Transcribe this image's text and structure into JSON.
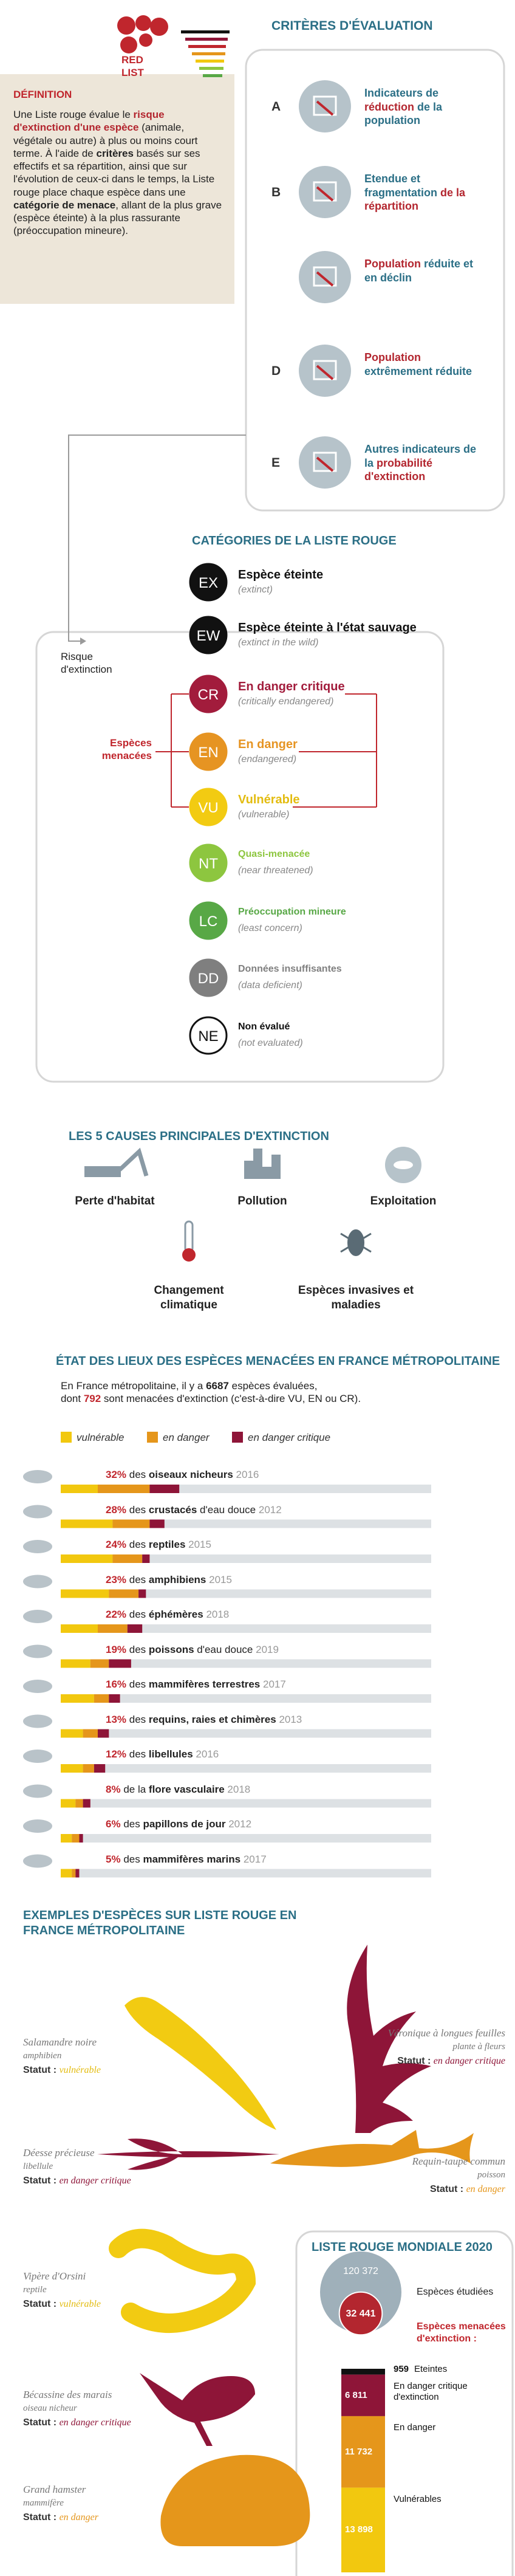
{
  "header": {
    "logo": "RED LIST",
    "criteria_title": "CRITÈRES D'ÉVALUATION"
  },
  "definition": {
    "title": "DÉFINITION",
    "text": [
      {
        "text": "Une Liste rouge évalue le ",
        "color": "#222222",
        "bold": false
      },
      {
        "text": "risque d'extinction d'une espèce",
        "color": "#b3262f",
        "bold": true
      },
      {
        "text": " (animale, végétale ou autre) à plus ou moins court terme. À l'aide de ",
        "color": "#222222",
        "bold": false
      },
      {
        "text": "critères",
        "color": "#222222",
        "bold": true
      },
      {
        "text": " basés sur ses effectifs et sa répartition, ainsi que sur l'évolution de ceux-ci dans le temps, la Liste rouge place chaque espèce dans une ",
        "color": "#222222",
        "bold": false
      },
      {
        "text": "catégorie de menace",
        "color": "#222222",
        "bold": true
      },
      {
        "text": ", allant de la plus grave (espèce éteinte) à la plus rassurante (préoccupation mineure).",
        "color": "#222222",
        "bold": false
      }
    ]
  },
  "criteria": [
    {
      "letter": "A",
      "text": [
        {
          "text": "Indicateurs de ",
          "color": "#2b6f86"
        },
        {
          "text": "réduction",
          "color": "#b3262f"
        },
        {
          "text": " de la population",
          "color": "#2b6f86"
        }
      ]
    },
    {
      "letter": "B",
      "text": [
        {
          "text": "Etendue et fragmentation ",
          "color": "#2b6f86"
        },
        {
          "text": "de la répartition",
          "color": "#b3262f"
        }
      ]
    },
    {
      "text": [
        {
          "text": "Population",
          "color": "#b3262f"
        },
        {
          "text": " réduite et en déclin",
          "color": "#2b6f86"
        }
      ]
    },
    {
      "letter": "D",
      "text": [
        {
          "text": "Population",
          "color": "#b3262f"
        },
        {
          "text": " extrêmement réduite",
          "color": "#2b6f86"
        }
      ]
    },
    {
      "letter": "E",
      "text": [
        {
          "text": "Autres indicateurs de la ",
          "color": "#2b6f86"
        },
        {
          "text": "probabilité d'extinction",
          "color": "#b3262f"
        }
      ]
    }
  ],
  "categories": {
    "title": "CATÉGORIES DE LA LISTE ROUGE",
    "risk_label": "Risque d'extinction",
    "threatened_label": "Espèces menacées",
    "items": [
      {
        "code": "EX",
        "name": "Espèce éteinte",
        "english": "(extinct)",
        "color": "#111111",
        "text_color": "#111111"
      },
      {
        "code": "EW",
        "name": "Espèce éteinte à l'état sauvage",
        "english": "(extinct in the wild)",
        "color": "#111111",
        "text_color": "#111111"
      },
      {
        "code": "CR",
        "name": "En danger critique",
        "english": "(critically endangered)",
        "color": "#a21c3c",
        "text_color": "#a21c3c"
      },
      {
        "code": "EN",
        "name": "En danger",
        "english": "(endangered)",
        "color": "#e69422",
        "text_color": "#e69422"
      },
      {
        "code": "VU",
        "name": "Vulnérable",
        "english": "(vulnerable)",
        "color": "#f2cb12",
        "text_color": "#e3bc10"
      },
      {
        "code": "NT",
        "name": "Quasi-menacée",
        "english": "(near threatened)",
        "color": "#8dc63f",
        "text_color": "#8dc63f"
      },
      {
        "code": "LC",
        "name": "Préoccupation mineure",
        "english": "(least concern)",
        "color": "#58a846",
        "text_color": "#58a846"
      },
      {
        "code": "DD",
        "name": "Données insuffisantes",
        "english": "(data deficient)",
        "color": "#7f7f7f",
        "text_color": "#7f7f7f"
      },
      {
        "code": "NE",
        "name": "Non évalué",
        "english": "(not evaluated)",
        "color": "#ffffff",
        "text_color": "#111111"
      }
    ]
  },
  "causes": {
    "title": "LES 5 CAUSES PRINCIPALES D'EXTINCTION",
    "items": [
      "Perte d'habitat",
      "Pollution",
      "Exploitation",
      "Changement climatique",
      "Espèces invasives et maladies"
    ]
  },
  "chart_data": [
    {
      "type": "bar",
      "orientation": "horizontal",
      "stacked": true,
      "title": "ÉTAT DES LIEUX DES ESPÈCES MENACÉES EN FRANCE MÉTROPOLITAINE",
      "intro": [
        "En France métropolitaine, il y a ",
        "6687",
        " espèces évaluées,",
        "dont ",
        "792",
        " sont menacées d'extinction (c'est-à-dire VU, EN ou CR)."
      ],
      "categories": [
        "oiseaux nicheurs",
        "crustacés",
        "reptiles",
        "amphibiens",
        "éphémères",
        "poissons",
        "mammifères terrestres",
        "requins, raies et chimères",
        "libellules",
        "flore vasculaire",
        "papillons de jour",
        "mammifères marins"
      ],
      "suffixes": [
        null,
        " d'eau douce",
        null,
        null,
        null,
        " d'eau douce",
        null,
        null,
        null,
        null,
        null,
        null
      ],
      "prefixes": [
        "des",
        "des",
        "des",
        "des",
        "des",
        "des",
        "des",
        "des",
        "des",
        "de la",
        "des",
        "des"
      ],
      "years": [
        "2016",
        "2012",
        "2015",
        "2015",
        "2018",
        "2019",
        "2017",
        "2013",
        "2016",
        "2018",
        "2012",
        "2017"
      ],
      "totals": [
        32,
        28,
        24,
        23,
        22,
        19,
        16,
        13,
        12,
        8,
        6,
        5
      ],
      "total_labels": [
        "32%",
        "28%",
        "24%",
        "23%",
        "22%",
        "19%",
        "16%",
        "13%",
        "12%",
        "8%",
        "6%",
        "5%"
      ],
      "xlim": [
        0,
        100
      ],
      "series": [
        {
          "name": "vulnérable",
          "color": "#f2c80f",
          "values": [
            10,
            14,
            14,
            13,
            10,
            8,
            9,
            6,
            6,
            4,
            3,
            3
          ]
        },
        {
          "name": "en danger",
          "color": "#e5961b",
          "values": [
            14,
            10,
            8,
            8,
            8,
            5,
            4,
            4,
            3,
            2,
            2,
            1
          ]
        },
        {
          "name": "en danger critique",
          "color": "#8e1538",
          "values": [
            8,
            4,
            2,
            2,
            4,
            6,
            3,
            3,
            3,
            2,
            1,
            1
          ]
        }
      ]
    },
    {
      "type": "bar",
      "orientation": "vertical",
      "stacked": true,
      "title": "LISTE ROUGE MONDIALE 2020",
      "bubbles": {
        "values": [
          120372,
          32441
        ],
        "value_labels": [
          "120 372",
          "32 441"
        ],
        "labels": [
          "Espèces étudiées",
          "Espèces menacées d'extinction :"
        ],
        "colors": [
          "#9fb0ba",
          "#b3262f"
        ]
      },
      "series": [
        {
          "name": "Eteintes",
          "color": "#111111",
          "values": [
            959
          ],
          "value_labels": [
            "959"
          ]
        },
        {
          "name": "En danger critique d'extinction",
          "color": "#8e1538",
          "values": [
            6811
          ],
          "value_labels": [
            "6 811"
          ]
        },
        {
          "name": "En danger",
          "color": "#e5961b",
          "values": [
            11732
          ],
          "value_labels": [
            "11 732"
          ]
        },
        {
          "name": "Vulnérables",
          "color": "#f2c80f",
          "values": [
            13898
          ],
          "value_labels": [
            "13 898"
          ]
        }
      ]
    }
  ],
  "examples": {
    "title": "EXEMPLES D'ESPÈCES SUR LISTE ROUGE EN FRANCE MÉTROPOLITAINE",
    "species": [
      {
        "name": "Salamandre noire",
        "group": "amphibien",
        "status_label": "Statut :",
        "status": "vulnérable",
        "color": "#f2cb12"
      },
      {
        "name": "Véronique à longues feuilles",
        "group": "plante à fleurs",
        "status_label": "Statut :",
        "status": "en danger critique",
        "color": "#8e1538"
      },
      {
        "name": "Déesse précieuse",
        "group": "libellule",
        "status_label": "Statut :",
        "status": "en danger critique",
        "color": "#8e1538"
      },
      {
        "name": "Requin-taupe commun",
        "group": "poisson",
        "status_label": "Statut :",
        "status": "en danger",
        "color": "#e5961b"
      },
      {
        "name": "Vipère d'Orsini",
        "group": "reptile",
        "status_label": "Statut :",
        "status": "vulnérable",
        "color": "#f2cb12"
      },
      {
        "name": "Bécassine des marais",
        "group": "oiseau nicheur",
        "status_label": "Statut :",
        "status": "en danger critique",
        "color": "#8e1538"
      },
      {
        "name": "Grand hamster",
        "group": "mammifère",
        "status_label": "Statut :",
        "status": "en danger",
        "color": "#e5961b"
      }
    ]
  }
}
